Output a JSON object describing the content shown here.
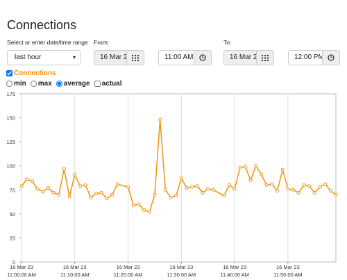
{
  "header": {
    "title": "Connections"
  },
  "range": {
    "label": "Select or enter date/time range",
    "selected": "last hour"
  },
  "from": {
    "label": "From:",
    "date": "16 Mar 2",
    "time": "11:00 AM"
  },
  "to": {
    "label": "To:",
    "date": "16 Mar 2",
    "time": "12:00 PM"
  },
  "options": {
    "items": [
      "min",
      "max",
      "average"
    ],
    "selected": 2,
    "actual": "actual",
    "actual_checked": false,
    "series_checked": true
  },
  "chart_data": {
    "type": "line",
    "x": [
      "2023-03-16T11:00",
      "2023-03-16T11:01",
      "2023-03-16T11:02",
      "2023-03-16T11:03",
      "2023-03-16T11:04",
      "2023-03-16T11:05",
      "2023-03-16T11:06",
      "2023-03-16T11:07",
      "2023-03-16T11:08",
      "2023-03-16T11:09",
      "2023-03-16T11:10",
      "2023-03-16T11:11",
      "2023-03-16T11:12",
      "2023-03-16T11:13",
      "2023-03-16T11:14",
      "2023-03-16T11:15",
      "2023-03-16T11:16",
      "2023-03-16T11:17",
      "2023-03-16T11:18",
      "2023-03-16T11:20",
      "2023-03-16T11:21",
      "2023-03-16T11:22",
      "2023-03-16T11:23",
      "2023-03-16T11:24",
      "2023-03-16T11:25",
      "2023-03-16T11:26",
      "2023-03-16T11:27",
      "2023-03-16T11:28",
      "2023-03-16T11:29",
      "2023-03-16T11:30",
      "2023-03-16T11:31",
      "2023-03-16T11:32",
      "2023-03-16T11:33",
      "2023-03-16T11:34",
      "2023-03-16T11:35",
      "2023-03-16T11:36",
      "2023-03-16T11:38",
      "2023-03-16T11:39",
      "2023-03-16T11:40",
      "2023-03-16T11:41",
      "2023-03-16T11:42",
      "2023-03-16T11:43",
      "2023-03-16T11:44",
      "2023-03-16T11:45",
      "2023-03-16T11:46",
      "2023-03-16T11:47",
      "2023-03-16T11:48",
      "2023-03-16T11:49",
      "2023-03-16T11:50",
      "2023-03-16T11:51",
      "2023-03-16T11:52",
      "2023-03-16T11:53",
      "2023-03-16T11:54",
      "2023-03-16T11:55",
      "2023-03-16T11:56",
      "2023-03-16T11:57",
      "2023-03-16T11:58",
      "2023-03-16T11:59"
    ],
    "series": [
      {
        "name": "Connections",
        "color": "#f0930e",
        "values": [
          79,
          86,
          84,
          76,
          73,
          77,
          72,
          70,
          97,
          68,
          91,
          79,
          80,
          67,
          71,
          72,
          66,
          70,
          81,
          78,
          59,
          60,
          54,
          52,
          70,
          148,
          75,
          67,
          69,
          87,
          77,
          78,
          79,
          72,
          76,
          75,
          69,
          80,
          76,
          98,
          99,
          85,
          100,
          91,
          80,
          81,
          74,
          96,
          76,
          75,
          72,
          80,
          79,
          72,
          78,
          81,
          74,
          70
        ]
      }
    ],
    "xlim": [
      "2023-03-16T11:00",
      "2023-03-16T11:59"
    ],
    "xticks": [
      {
        "value": "2023-03-16T11:00",
        "label": [
          "16 Mar 23",
          "11:00:00 AM"
        ]
      },
      {
        "value": "2023-03-16T11:10",
        "label": [
          "16 Mar 23",
          "11:10:00 AM"
        ]
      },
      {
        "value": "2023-03-16T11:20",
        "label": [
          "16 Mar 23",
          "11:20:00 AM"
        ]
      },
      {
        "value": "2023-03-16T11:30",
        "label": [
          "16 Mar 23",
          "11:30:00 AM"
        ]
      },
      {
        "value": "2023-03-16T11:40",
        "label": [
          "16 Mar 23",
          "11:40:00 AM"
        ]
      },
      {
        "value": "2023-03-16T11:50",
        "label": [
          "16 Mar 23",
          "11:50:00 AM"
        ]
      }
    ],
    "ylim": [
      0,
      175
    ],
    "yticks": [
      0,
      25,
      50,
      75,
      100,
      125,
      150,
      175
    ],
    "grid": "x"
  }
}
